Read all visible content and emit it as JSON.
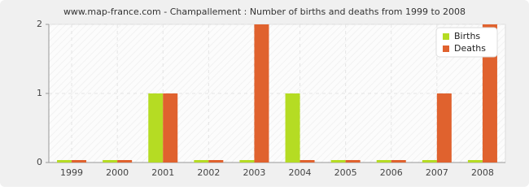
{
  "chart_data": {
    "type": "bar",
    "title": "www.map-france.com - Champallement : Number of births and deaths from 1999 to 2008",
    "categories": [
      "1999",
      "2000",
      "2001",
      "2002",
      "2003",
      "2004",
      "2005",
      "2006",
      "2007",
      "2008"
    ],
    "series": [
      {
        "name": "Births",
        "color": "#b5dc23",
        "values": [
          0,
          0,
          1,
          0,
          0,
          1,
          0,
          0,
          0,
          0
        ]
      },
      {
        "name": "Deaths",
        "color": "#e0622e",
        "values": [
          0,
          0,
          1,
          0,
          2,
          0,
          0,
          0,
          1,
          2
        ]
      }
    ],
    "ylim": [
      0,
      2
    ],
    "yticks": [
      0,
      1,
      2
    ],
    "grid": true,
    "legend": "top-right"
  }
}
